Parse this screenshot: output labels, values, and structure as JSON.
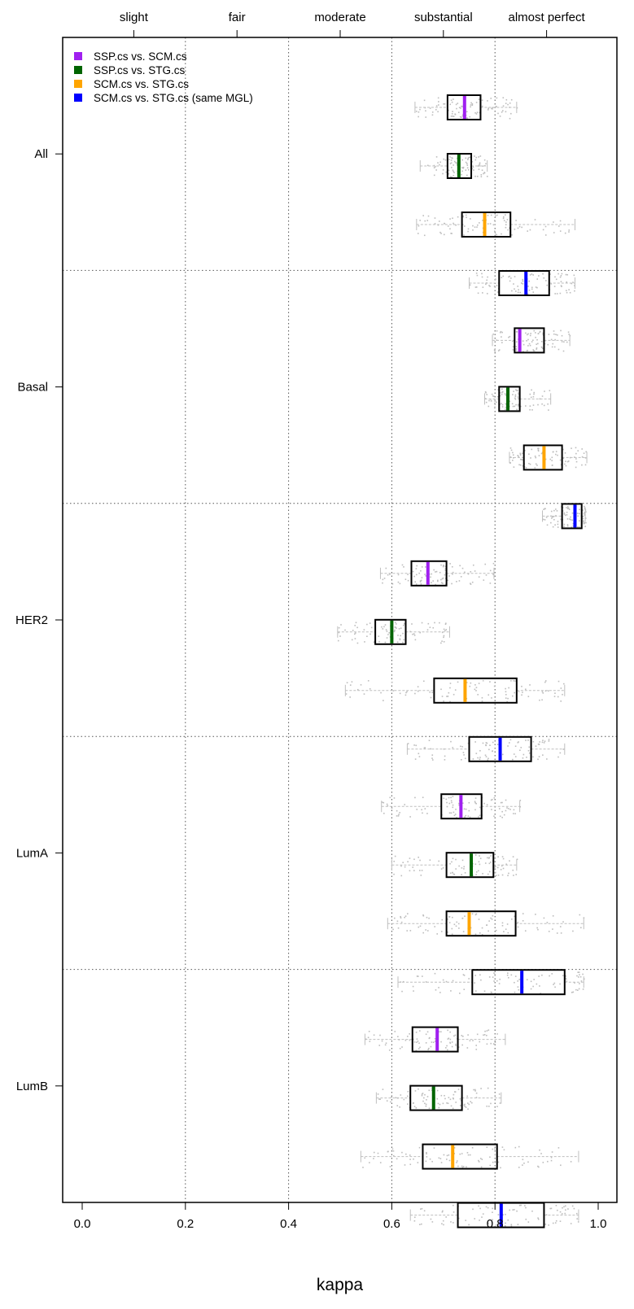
{
  "chart_data": {
    "type": "boxplot",
    "xlabel": "kappa",
    "xlim": [
      -0.04,
      1.04
    ],
    "x_ticks": [
      "0.0",
      "0.2",
      "0.4",
      "0.6",
      "0.8",
      "1.0"
    ],
    "x_tick_values": [
      0.0,
      0.2,
      0.4,
      0.6,
      0.8,
      1.0
    ],
    "top_axis": {
      "labels": [
        "slight",
        "fair",
        "moderate",
        "substantial",
        "almost perfect"
      ],
      "positions": [
        0.1,
        0.3,
        0.5,
        0.7,
        0.9
      ]
    },
    "reference_lines": [
      0.2,
      0.4,
      0.6,
      0.8
    ],
    "groups": [
      "All",
      "Basal",
      "HER2",
      "LumA",
      "LumB"
    ],
    "legend": [
      {
        "name": "SSP.cs vs. SCM.cs",
        "color": "#a020f0"
      },
      {
        "name": "SSP.cs vs. STG.cs",
        "color": "#006400"
      },
      {
        "name": "SCM.cs vs. STG.cs",
        "color": "#ffa500"
      },
      {
        "name": "SCM.cs vs. STG.cs (same MGL)",
        "color": "#0000ff"
      }
    ],
    "legend_position": "top-left",
    "boxes": [
      {
        "group": "All",
        "series": 0,
        "whisker_low": 0.645,
        "q1": 0.708,
        "median": 0.741,
        "q3": 0.772,
        "whisker_high": 0.842
      },
      {
        "group": "All",
        "series": 1,
        "whisker_low": 0.655,
        "q1": 0.708,
        "median": 0.73,
        "q3": 0.754,
        "whisker_high": 0.785
      },
      {
        "group": "All",
        "series": 2,
        "whisker_low": 0.648,
        "q1": 0.736,
        "median": 0.78,
        "q3": 0.83,
        "whisker_high": 0.955
      },
      {
        "group": "All",
        "series": 3,
        "whisker_low": 0.75,
        "q1": 0.808,
        "median": 0.86,
        "q3": 0.905,
        "whisker_high": 0.955
      },
      {
        "group": "Basal",
        "series": 0,
        "whisker_low": 0.795,
        "q1": 0.838,
        "median": 0.848,
        "q3": 0.895,
        "whisker_high": 0.945
      },
      {
        "group": "Basal",
        "series": 1,
        "whisker_low": 0.78,
        "q1": 0.808,
        "median": 0.825,
        "q3": 0.848,
        "whisker_high": 0.908
      },
      {
        "group": "Basal",
        "series": 2,
        "whisker_low": 0.828,
        "q1": 0.856,
        "median": 0.895,
        "q3": 0.93,
        "whisker_high": 0.978
      },
      {
        "group": "Basal",
        "series": 3,
        "whisker_low": 0.892,
        "q1": 0.93,
        "median": 0.955,
        "q3": 0.968,
        "whisker_high": 0.975
      },
      {
        "group": "HER2",
        "series": 0,
        "whisker_low": 0.578,
        "q1": 0.638,
        "median": 0.67,
        "q3": 0.706,
        "whisker_high": 0.798
      },
      {
        "group": "HER2",
        "series": 1,
        "whisker_low": 0.495,
        "q1": 0.568,
        "median": 0.6,
        "q3": 0.627,
        "whisker_high": 0.712
      },
      {
        "group": "HER2",
        "series": 2,
        "whisker_low": 0.51,
        "q1": 0.682,
        "median": 0.742,
        "q3": 0.842,
        "whisker_high": 0.935
      },
      {
        "group": "HER2",
        "series": 3,
        "whisker_low": 0.63,
        "q1": 0.75,
        "median": 0.81,
        "q3": 0.87,
        "whisker_high": 0.935
      },
      {
        "group": "LumA",
        "series": 0,
        "whisker_low": 0.58,
        "q1": 0.696,
        "median": 0.734,
        "q3": 0.774,
        "whisker_high": 0.848
      },
      {
        "group": "LumA",
        "series": 1,
        "whisker_low": 0.6,
        "q1": 0.706,
        "median": 0.754,
        "q3": 0.797,
        "whisker_high": 0.842
      },
      {
        "group": "LumA",
        "series": 2,
        "whisker_low": 0.592,
        "q1": 0.706,
        "median": 0.75,
        "q3": 0.84,
        "whisker_high": 0.972
      },
      {
        "group": "LumA",
        "series": 3,
        "whisker_low": 0.612,
        "q1": 0.756,
        "median": 0.852,
        "q3": 0.935,
        "whisker_high": 0.972
      },
      {
        "group": "LumB",
        "series": 0,
        "whisker_low": 0.548,
        "q1": 0.64,
        "median": 0.688,
        "q3": 0.728,
        "whisker_high": 0.82
      },
      {
        "group": "LumB",
        "series": 1,
        "whisker_low": 0.57,
        "q1": 0.636,
        "median": 0.681,
        "q3": 0.736,
        "whisker_high": 0.812
      },
      {
        "group": "LumB",
        "series": 2,
        "whisker_low": 0.54,
        "q1": 0.66,
        "median": 0.718,
        "q3": 0.804,
        "whisker_high": 0.962
      },
      {
        "group": "LumB",
        "series": 3,
        "whisker_low": 0.636,
        "q1": 0.728,
        "median": 0.812,
        "q3": 0.895,
        "whisker_high": 0.962
      }
    ]
  }
}
